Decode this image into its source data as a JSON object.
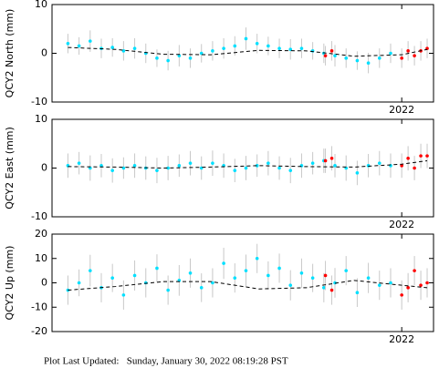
{
  "chart_data": [
    {
      "type": "scatter",
      "ylabel": "QCY2 North (mm)",
      "xlim": [
        2020.9,
        2022.1
      ],
      "xticks": [
        {
          "value": 2022,
          "label": "2022"
        }
      ],
      "ylim": [
        -10,
        10
      ],
      "yticks": [
        -10,
        0,
        10
      ],
      "series": [
        {
          "mark": "point",
          "color": "#00e0ff",
          "x": [
            2020.95,
            2020.985,
            2021.02,
            2021.055,
            2021.09,
            2021.125,
            2021.16,
            2021.195,
            2021.23,
            2021.265,
            2021.3,
            2021.335,
            2021.37,
            2021.405,
            2021.44,
            2021.475,
            2021.51,
            2021.545,
            2021.58,
            2021.615,
            2021.65,
            2021.685,
            2021.72,
            2021.755,
            2021.79,
            2021.825,
            2021.86,
            2021.895,
            2021.93,
            2021.965
          ],
          "values": [
            2,
            1.5,
            2.5,
            1,
            1.2,
            0.5,
            1,
            0,
            -1,
            -1.5,
            -0.5,
            -1,
            0,
            0.5,
            1,
            1.5,
            3,
            2,
            1.5,
            1,
            0.8,
            1,
            0.5,
            0,
            -0.5,
            -1,
            -1.5,
            -2,
            -1,
            0
          ],
          "errors": [
            2,
            1.8,
            2.2,
            2,
            1.9,
            2,
            2.1,
            2,
            1.8,
            2,
            2.2,
            2,
            1.9,
            2,
            2.1,
            2,
            2.3,
            2,
            1.9,
            2,
            2.1,
            2,
            1.8,
            2,
            2.2,
            2,
            1.9,
            2.1,
            2,
            2
          ]
        },
        {
          "mark": "point",
          "color": "#ff0000",
          "x": [
            2021.76,
            2021.78,
            2022.0,
            2022.02,
            2022.04,
            2022.06,
            2022.08
          ],
          "values": [
            -0.5,
            0.5,
            -1,
            0.5,
            -0.5,
            0.5,
            1
          ],
          "errors": [
            2,
            2,
            2,
            2,
            2,
            2,
            2
          ]
        },
        {
          "mark": "dashed-line",
          "color": "#000000",
          "x": [
            2020.95,
            2021.1,
            2021.25,
            2021.4,
            2021.55,
            2021.7,
            2021.85,
            2022.0,
            2022.08
          ],
          "values": [
            1.2,
            0.8,
            -0.2,
            -0.3,
            0.6,
            0.5,
            -0.6,
            -0.3,
            0.8
          ]
        }
      ]
    },
    {
      "type": "scatter",
      "ylabel": "QCY2 East (mm)",
      "xlim": [
        2020.9,
        2022.1
      ],
      "xticks": [
        {
          "value": 2022,
          "label": "2022"
        }
      ],
      "ylim": [
        -10,
        10
      ],
      "yticks": [
        -10,
        0,
        10
      ],
      "series": [
        {
          "mark": "point",
          "color": "#00e0ff",
          "x": [
            2020.95,
            2020.985,
            2021.02,
            2021.055,
            2021.09,
            2021.125,
            2021.16,
            2021.195,
            2021.23,
            2021.265,
            2021.3,
            2021.335,
            2021.37,
            2021.405,
            2021.44,
            2021.475,
            2021.51,
            2021.545,
            2021.58,
            2021.615,
            2021.65,
            2021.685,
            2021.72,
            2021.755,
            2021.79,
            2021.825,
            2021.86,
            2021.895,
            2021.93,
            2021.965
          ],
          "values": [
            0.5,
            1,
            0,
            0.5,
            -0.5,
            0,
            0.5,
            0,
            -0.5,
            0,
            0.5,
            1,
            0,
            1,
            0.5,
            -0.5,
            0,
            0.5,
            1,
            0,
            -0.5,
            0.5,
            1,
            1.5,
            0.5,
            0,
            -1,
            0.5,
            1,
            0.5
          ],
          "errors": [
            2.5,
            2.3,
            2.6,
            2.4,
            2.5,
            2.2,
            2.5,
            2.4,
            2.6,
            2.5,
            2.3,
            2.5,
            2.4,
            2.6,
            2.5,
            2.4,
            2.5,
            2.3,
            2.5,
            2.4,
            2.6,
            2.5,
            2.3,
            2.5,
            2.4,
            2.6,
            2.5,
            2.4,
            2.5,
            2.5
          ]
        },
        {
          "mark": "point",
          "color": "#ff0000",
          "x": [
            2021.76,
            2021.78,
            2022.0,
            2022.02,
            2022.04,
            2022.06,
            2022.08
          ],
          "values": [
            1.5,
            2,
            0.5,
            2,
            0,
            2.5,
            2.5
          ],
          "errors": [
            2.5,
            2.5,
            2.5,
            2.5,
            2.5,
            2.5,
            2.5
          ]
        },
        {
          "mark": "dashed-line",
          "color": "#000000",
          "x": [
            2020.95,
            2021.1,
            2021.25,
            2021.4,
            2021.55,
            2021.7,
            2021.85,
            2022.0,
            2022.08
          ],
          "values": [
            0.3,
            0.2,
            0,
            0.2,
            0.5,
            0.3,
            0.2,
            0.8,
            1.5
          ]
        }
      ]
    },
    {
      "type": "scatter",
      "ylabel": "QCY2 Up (mm)",
      "xlim": [
        2020.9,
        2022.1
      ],
      "xticks": [
        {
          "value": 2022,
          "label": "2022"
        }
      ],
      "ylim": [
        -20,
        20
      ],
      "yticks": [
        -20,
        -10,
        0,
        10,
        20
      ],
      "series": [
        {
          "mark": "point",
          "color": "#00e0ff",
          "x": [
            2020.95,
            2020.985,
            2021.02,
            2021.055,
            2021.09,
            2021.125,
            2021.16,
            2021.195,
            2021.23,
            2021.265,
            2021.3,
            2021.335,
            2021.37,
            2021.405,
            2021.44,
            2021.475,
            2021.51,
            2021.545,
            2021.58,
            2021.615,
            2021.65,
            2021.685,
            2021.72,
            2021.755,
            2021.79,
            2021.825,
            2021.86,
            2021.895,
            2021.93,
            2021.965
          ],
          "values": [
            -3,
            0,
            5,
            -2,
            2,
            -5,
            3,
            0,
            6,
            -3,
            1,
            4,
            -2,
            0,
            8,
            2,
            5,
            10,
            3,
            6,
            -1,
            4,
            2,
            -2,
            0,
            5,
            -4,
            2,
            -1,
            0
          ],
          "errors": [
            6,
            5.5,
            6.5,
            6,
            5.8,
            6,
            6.2,
            6,
            5.7,
            6,
            6.3,
            6,
            5.9,
            6,
            6.4,
            6,
            6.6,
            6,
            5.8,
            6,
            6.2,
            6,
            5.8,
            6,
            6.1,
            6,
            5.9,
            6.2,
            6,
            6
          ]
        },
        {
          "mark": "point",
          "color": "#ff0000",
          "x": [
            2021.76,
            2021.78,
            2022.0,
            2022.02,
            2022.04,
            2022.06,
            2022.08
          ],
          "values": [
            3,
            -3,
            -5,
            -2,
            5,
            -1,
            0
          ],
          "errors": [
            6,
            6,
            6,
            6,
            6,
            6,
            6
          ]
        },
        {
          "mark": "dashed-line",
          "color": "#000000",
          "x": [
            2020.95,
            2021.1,
            2021.25,
            2021.4,
            2021.55,
            2021.7,
            2021.85,
            2022.0,
            2022.08
          ],
          "values": [
            -3,
            -1.5,
            0.5,
            0.5,
            -2.5,
            -2,
            1,
            -1,
            -2
          ]
        }
      ]
    }
  ],
  "footer": "Plot Last Updated:   Sunday, January 30, 2022 08:19:28 PST"
}
